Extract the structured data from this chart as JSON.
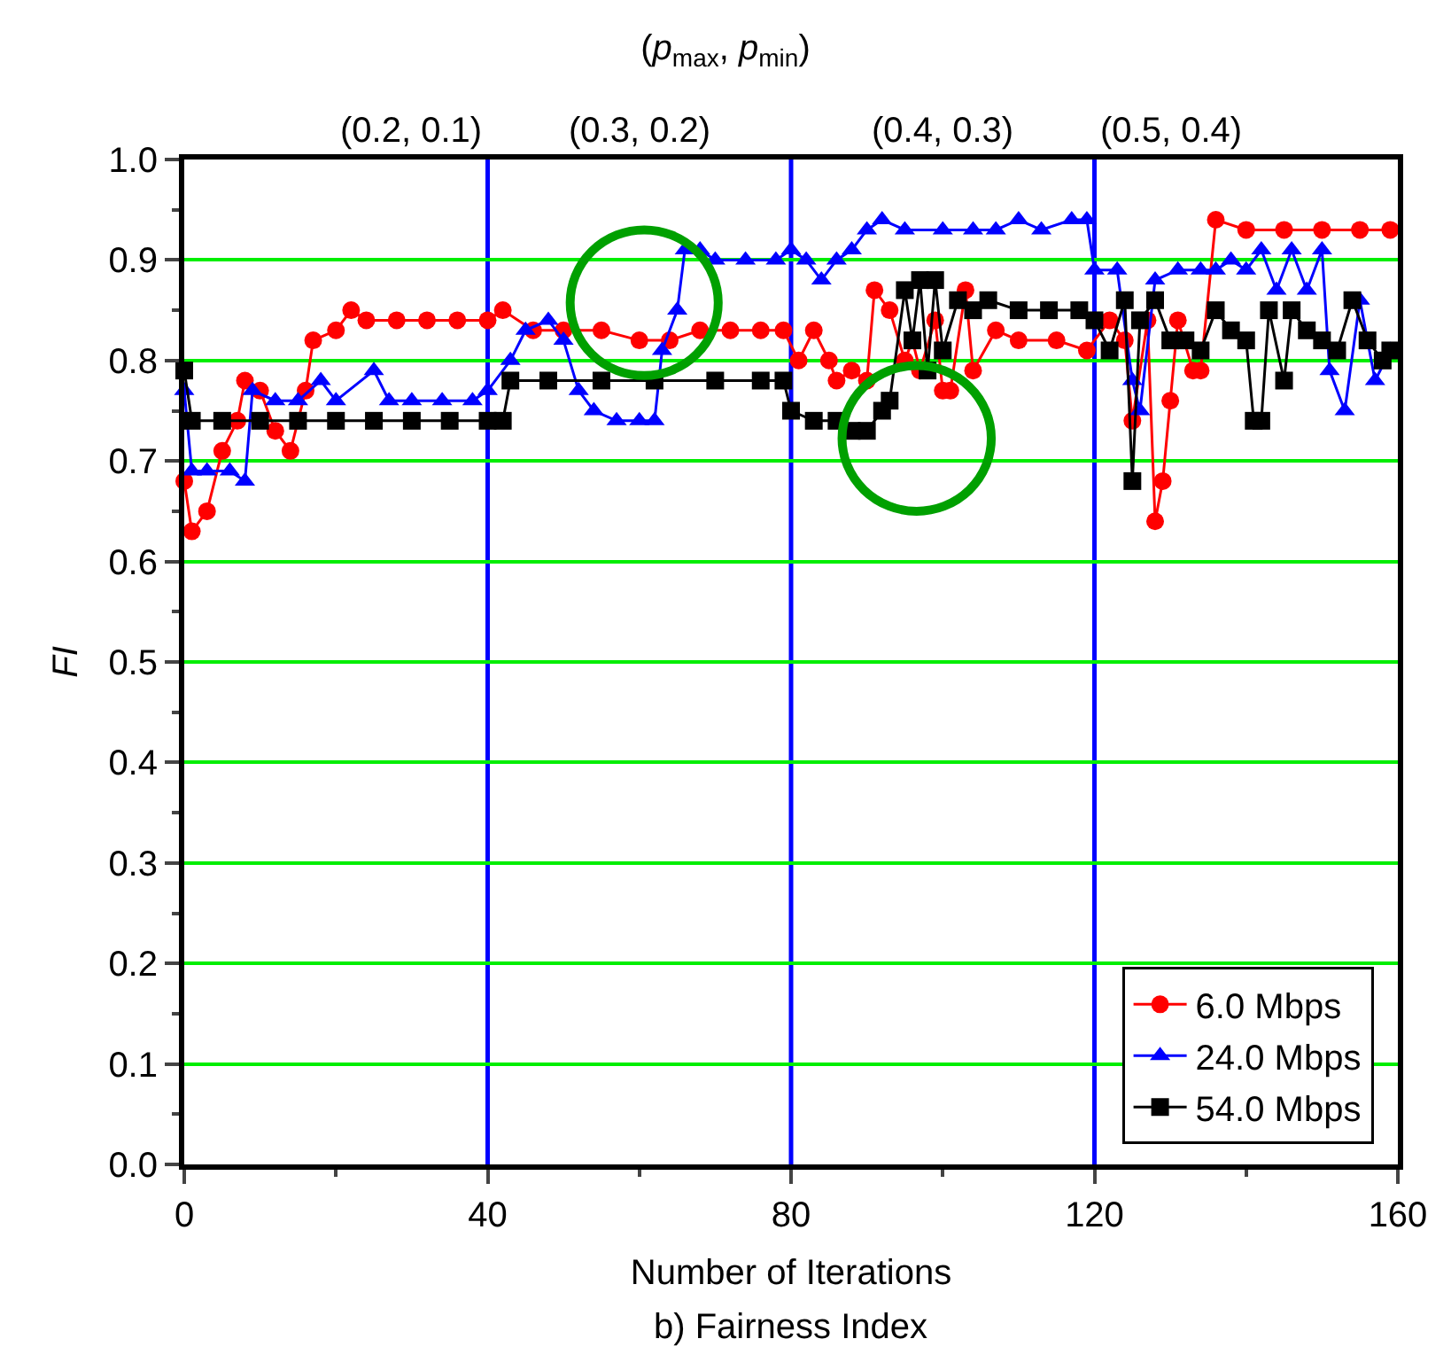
{
  "chart_data": {
    "type": "line",
    "title": "(p$_{max}$, p$_{min}$)",
    "xlabel": "Number of Iterations",
    "ylabel": "FI",
    "annotations": [
      "b) Fairness Index",
      "(0.2, 0.1)",
      "(0.3, 0.2)",
      "(0.4, 0.3)",
      "(0.5, 0.4)"
    ],
    "xlim": [
      0,
      160
    ],
    "xticks": [
      0,
      40,
      80,
      120,
      160
    ],
    "ylim": [
      0,
      1
    ],
    "yticks": [
      {
        "value": 0,
        "label": "0.0"
      },
      0.1,
      0.2,
      0.3,
      0.4,
      0.5,
      0.6,
      0.7,
      0.8,
      0.9,
      {
        "value": 1,
        "label": "1.0"
      }
    ],
    "grid": "y",
    "legend": "bottom right",
    "line_style": "solid",
    "ref_lines": [
      {
        "axis": "x",
        "value": 40,
        "color": "#0000ff"
      },
      {
        "axis": "x",
        "value": 80,
        "color": "#0000ff"
      },
      {
        "axis": "x",
        "value": 120,
        "color": "#0000ff"
      }
    ],
    "series": [
      {
        "name": "6.0 Mbps",
        "color": "#ff0000",
        "marker": "circle",
        "x": [
          0,
          1,
          3,
          5,
          7,
          8,
          10,
          12,
          14,
          16,
          17,
          20,
          22,
          24,
          28,
          32,
          36,
          40,
          42,
          46,
          50,
          55,
          60,
          64,
          68,
          72,
          76,
          79,
          81,
          83,
          85,
          86,
          88,
          90,
          91,
          93,
          95,
          96,
          97,
          99,
          100,
          101,
          103,
          104,
          107,
          110,
          115,
          119,
          122,
          124,
          125,
          127,
          128,
          129,
          130,
          131,
          133,
          134,
          136,
          140,
          145,
          150,
          155,
          159
        ],
        "values": [
          0.68,
          0.63,
          0.65,
          0.71,
          0.74,
          0.78,
          0.77,
          0.73,
          0.71,
          0.77,
          0.82,
          0.83,
          0.85,
          0.84,
          0.84,
          0.84,
          0.84,
          0.84,
          0.85,
          0.83,
          0.83,
          0.83,
          0.82,
          0.82,
          0.83,
          0.83,
          0.83,
          0.83,
          0.8,
          0.83,
          0.8,
          0.78,
          0.79,
          0.78,
          0.87,
          0.85,
          0.8,
          0.82,
          0.79,
          0.84,
          0.77,
          0.77,
          0.87,
          0.79,
          0.83,
          0.82,
          0.82,
          0.81,
          0.84,
          0.82,
          0.74,
          0.84,
          0.64,
          0.68,
          0.76,
          0.84,
          0.79,
          0.79,
          0.94,
          0.93,
          0.93,
          0.93,
          0.93,
          0.93
        ]
      },
      {
        "name": "24.0 Mbps",
        "color": "#0000ff",
        "marker": "triangle",
        "x": [
          0,
          1,
          3,
          6,
          8,
          9,
          12,
          15,
          18,
          20,
          25,
          27,
          30,
          34,
          38,
          40,
          43,
          45,
          48,
          50,
          52,
          54,
          57,
          60,
          62,
          63,
          65,
          66,
          68,
          70,
          74,
          78,
          80,
          82,
          84,
          86,
          88,
          90,
          92,
          95,
          100,
          104,
          107,
          110,
          113,
          117,
          119,
          120,
          123,
          125,
          126,
          128,
          131,
          134,
          136,
          138,
          140,
          142,
          144,
          146,
          148,
          150,
          151,
          153,
          155,
          157,
          159
        ],
        "values": [
          0.77,
          0.69,
          0.69,
          0.69,
          0.68,
          0.77,
          0.76,
          0.76,
          0.78,
          0.76,
          0.79,
          0.76,
          0.76,
          0.76,
          0.76,
          0.77,
          0.8,
          0.83,
          0.84,
          0.82,
          0.77,
          0.75,
          0.74,
          0.74,
          0.74,
          0.81,
          0.85,
          0.91,
          0.91,
          0.9,
          0.9,
          0.9,
          0.91,
          0.9,
          0.88,
          0.9,
          0.91,
          0.93,
          0.94,
          0.93,
          0.93,
          0.93,
          0.93,
          0.94,
          0.93,
          0.94,
          0.94,
          0.89,
          0.89,
          0.78,
          0.75,
          0.88,
          0.89,
          0.89,
          0.89,
          0.9,
          0.89,
          0.91,
          0.87,
          0.91,
          0.87,
          0.91,
          0.79,
          0.75,
          0.86,
          0.78,
          0.81
        ]
      },
      {
        "name": "54.0 Mbps",
        "color": "#000000",
        "marker": "square",
        "x": [
          0,
          1,
          5,
          10,
          15,
          20,
          25,
          30,
          35,
          40,
          42,
          43,
          48,
          55,
          62,
          70,
          76,
          79,
          80,
          83,
          86,
          88,
          90,
          92,
          93,
          95,
          96,
          97,
          98,
          99,
          100,
          102,
          104,
          106,
          110,
          114,
          118,
          120,
          122,
          124,
          125,
          126,
          128,
          130,
          132,
          134,
          136,
          138,
          140,
          141,
          142,
          143,
          145,
          146,
          148,
          150,
          152,
          154,
          156,
          158,
          159
        ],
        "values": [
          0.79,
          0.74,
          0.74,
          0.74,
          0.74,
          0.74,
          0.74,
          0.74,
          0.74,
          0.74,
          0.74,
          0.78,
          0.78,
          0.78,
          0.78,
          0.78,
          0.78,
          0.78,
          0.75,
          0.74,
          0.74,
          0.73,
          0.73,
          0.75,
          0.76,
          0.87,
          0.82,
          0.88,
          0.79,
          0.88,
          0.81,
          0.86,
          0.85,
          0.86,
          0.85,
          0.85,
          0.85,
          0.84,
          0.81,
          0.86,
          0.68,
          0.84,
          0.86,
          0.82,
          0.82,
          0.81,
          0.85,
          0.83,
          0.82,
          0.74,
          0.74,
          0.85,
          0.78,
          0.85,
          0.83,
          0.82,
          0.81,
          0.86,
          0.82,
          0.8,
          0.81
        ]
      }
    ]
  }
}
